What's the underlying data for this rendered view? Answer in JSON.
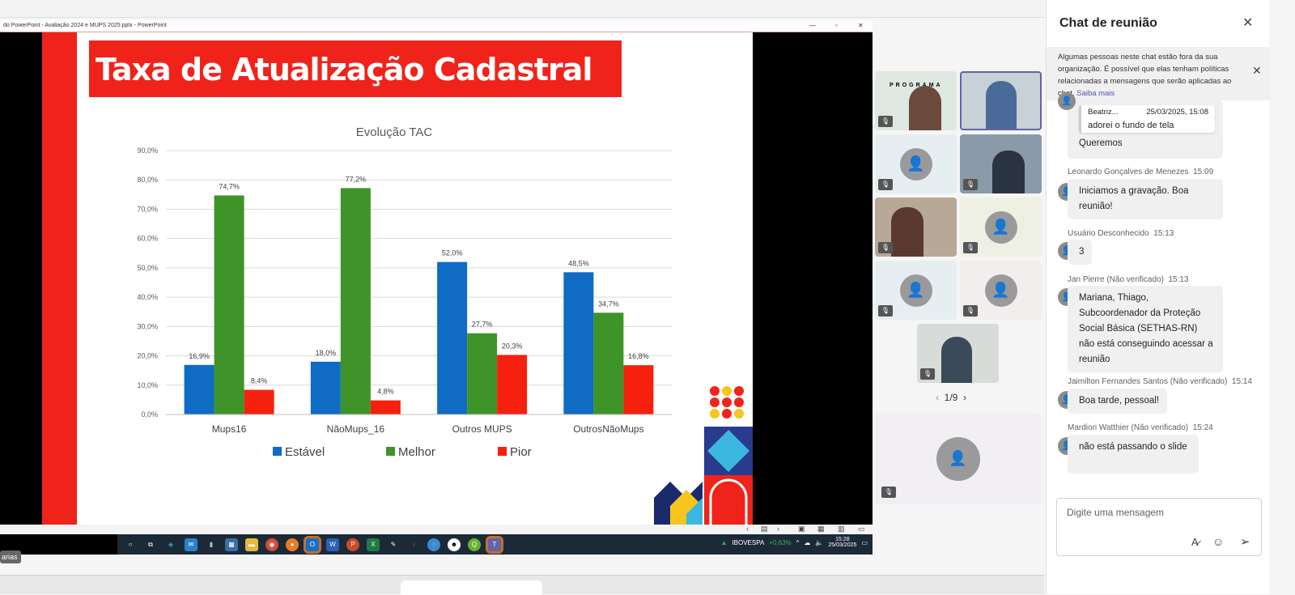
{
  "window": {
    "title": "do PowerPoint  -  Avaliação 2024 e MUPS 2025.pptx  -  PowerPoint"
  },
  "slide": {
    "title": "Taxa de Atualização Cadastral"
  },
  "chart_data": {
    "type": "bar",
    "title": "Evolução TAC",
    "categories": [
      "Mups16",
      "NãoMups_16",
      "Outros MUPS",
      "OutrosNãoMups"
    ],
    "series": [
      {
        "name": "Estável",
        "color": "#0f6bc4",
        "values": [
          16.9,
          18.0,
          52.0,
          48.5
        ],
        "labels": [
          "16,9%",
          "18,0%",
          "52,0%",
          "48,5%"
        ]
      },
      {
        "name": "Melhor",
        "color": "#3e9428",
        "values": [
          74.7,
          77.2,
          27.7,
          34.7
        ],
        "labels": [
          "74,7%",
          "77,2%",
          "27,7%",
          "34,7%"
        ]
      },
      {
        "name": "Pior",
        "color": "#f5200e",
        "values": [
          8.4,
          4.8,
          20.3,
          16.8
        ],
        "labels": [
          "8,4%",
          "4,8%",
          "20,3%",
          "16,8%"
        ]
      }
    ],
    "yticks": [
      "0,0%",
      "10,0%",
      "20,0%",
      "30,0%",
      "40,0%",
      "50,0%",
      "60,0%",
      "70,0%",
      "80,0%",
      "90,0%"
    ],
    "ylim": [
      0,
      90
    ],
    "grid": true,
    "legend": "bottom"
  },
  "taskbar": {
    "ticker": "IBOVESPA",
    "ticker_change": "+0,63%",
    "time": "15:28",
    "date": "25/03/2025",
    "ticker_color": "#3bb54a"
  },
  "bottom": {
    "tooltip": "arias"
  },
  "gallery": {
    "logo_text": "PROGRAMA",
    "page": "1/9"
  },
  "chat": {
    "title": "Chat de reunião",
    "notice": "Algumas pessoas neste chat estão fora da sua organização. É possível que elas tenham políticas relacionadas a mensagens que serão aplicadas ao chat.",
    "notice_link": "Saiba mais",
    "quote": {
      "author": "Beatriz...",
      "time": "25/03/2025, 15:08",
      "text": "adorei o fundo de tela"
    },
    "reply": "Queremos",
    "messages": [
      {
        "author": "Leonardo Gonçalves de Menezes",
        "time": "15:09",
        "text": "Iniciamos a gravação. Boa reunião!"
      },
      {
        "author": "Usuário Desconhecido",
        "time": "15:13",
        "text": "3"
      },
      {
        "author": "Jan Pierre (Não verificado)",
        "time": "15:13",
        "text": "Mariana, Thiago, Subcoordenador da Proteção Social Básica (SETHAS-RN) não está conseguindo acessar a reunião"
      },
      {
        "author": "Jaimilton Fernandes Santos (Não verificado)",
        "time": "15:14",
        "text": "Boa tarde, pessoal!"
      },
      {
        "author": "Mardiori Watthier (Não verificado)",
        "time": "15:24",
        "text": "não está passando o slide"
      }
    ],
    "input_placeholder": "Digite uma mensagem"
  }
}
